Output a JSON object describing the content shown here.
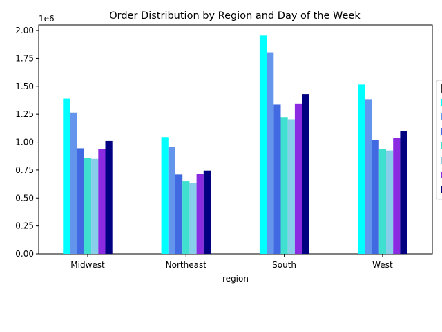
{
  "chart_data": {
    "type": "bar",
    "title": "Order Distribution by Region and Day of the Week",
    "xlabel": "region",
    "ylabel": "",
    "y_offset_label": "1e6",
    "y_scale": 1000000,
    "ylim": [
      0,
      2.05
    ],
    "yticks": [
      "0.00",
      "0.25",
      "0.50",
      "0.75",
      "1.00",
      "1.25",
      "1.50",
      "1.75",
      "2.00"
    ],
    "categories": [
      "Midwest",
      "Northeast",
      "South",
      "West"
    ],
    "legend_position": "right (partially cut off)",
    "series": [
      {
        "color": "#00ffff",
        "values": [
          1390000,
          1045000,
          1955000,
          1515000
        ]
      },
      {
        "color": "#6495ed",
        "values": [
          1265000,
          955000,
          1805000,
          1385000
        ]
      },
      {
        "color": "#4169e1",
        "values": [
          945000,
          710000,
          1335000,
          1020000
        ]
      },
      {
        "color": "#40e0d0",
        "values": [
          855000,
          650000,
          1225000,
          935000
        ]
      },
      {
        "color": "#87ceeb",
        "values": [
          850000,
          635000,
          1205000,
          925000
        ]
      },
      {
        "color": "#8a2be2",
        "values": [
          940000,
          715000,
          1345000,
          1035000
        ]
      },
      {
        "color": "#000080",
        "values": [
          1010000,
          745000,
          1430000,
          1100000
        ]
      }
    ]
  }
}
